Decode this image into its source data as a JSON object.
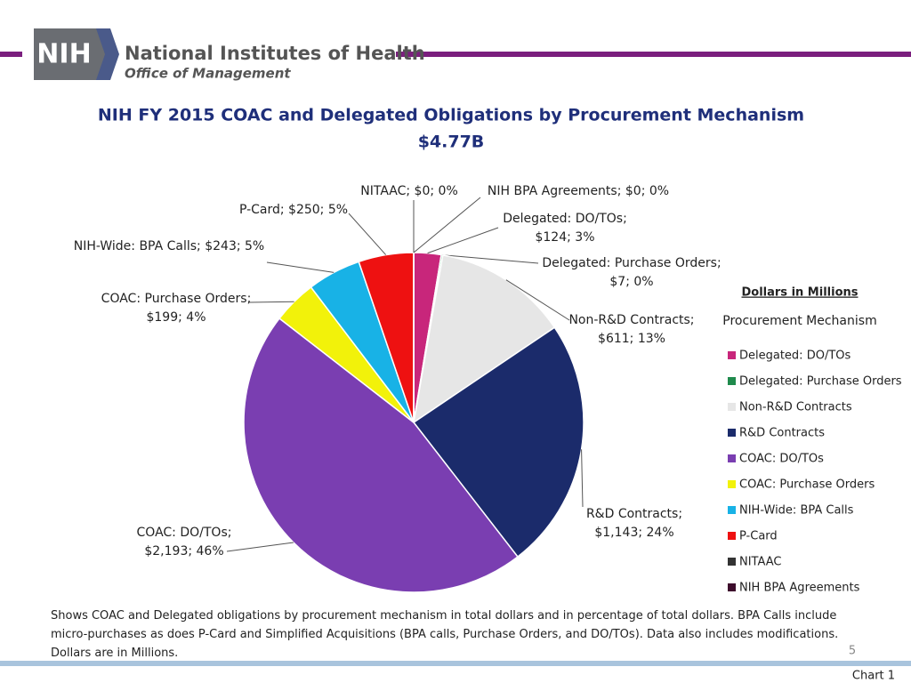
{
  "header": {
    "logo": "NIH",
    "organization": "National Institutes of Health",
    "office": "Office of Management"
  },
  "chart_data": {
    "type": "pie",
    "title": "NIH FY 2015 COAC and Delegated Obligations by Procurement Mechanism",
    "subtitle": "$4.77B",
    "units_note": "Dollars in Millions",
    "legend_title": "Procurement Mechanism",
    "categories": [
      "Delegated: DO/TOs",
      "Delegated: Purchase Orders",
      "Non-R&D Contracts",
      "R&D Contracts",
      "COAC: DO/TOs",
      "COAC: Purchase Orders",
      "NIH-Wide: BPA Calls",
      "P-Card",
      "NITAAC",
      "NIH BPA Agreements"
    ],
    "values": [
      124,
      7,
      611,
      1143,
      2193,
      199,
      243,
      250,
      0,
      0
    ],
    "value_labels": [
      [
        "Delegated: DO/TOs;",
        "$124; 3%"
      ],
      [
        "Delegated: Purchase Orders;",
        "$7; 0%"
      ],
      [
        "Non-R&D Contracts;",
        "$611; 13%"
      ],
      [
        "R&D Contracts;",
        "$1,143; 24%"
      ],
      [
        "COAC: DO/TOs;",
        "$2,193; 46%"
      ],
      [
        "COAC: Purchase Orders;",
        "$199; 4%"
      ],
      [
        "NIH-Wide: BPA Calls; $243; 5%"
      ],
      [
        "P-Card; $250; 5%"
      ],
      [
        "NITAAC; $0; 0%"
      ],
      [
        "NIH BPA Agreements; $0; 0%"
      ]
    ],
    "colors": [
      "#c8267b",
      "#1f8a4c",
      "#e6e6e6",
      "#1b2b6b",
      "#7a3eb1",
      "#f2f20a",
      "#18b2e6",
      "#ee1111",
      "#333333",
      "#3d0c2c"
    ],
    "legend": "right"
  },
  "footnote": "Shows COAC and Delegated obligations by procurement mechanism in total dollars and in percentage of total dollars. BPA Calls include micro-purchases as does P-Card and Simplified Acquisitions (BPA calls, Purchase Orders, and DO/TOs). Data also includes modifications. Dollars are in Millions.",
  "page_number": "5",
  "tab_label": "Chart 1"
}
